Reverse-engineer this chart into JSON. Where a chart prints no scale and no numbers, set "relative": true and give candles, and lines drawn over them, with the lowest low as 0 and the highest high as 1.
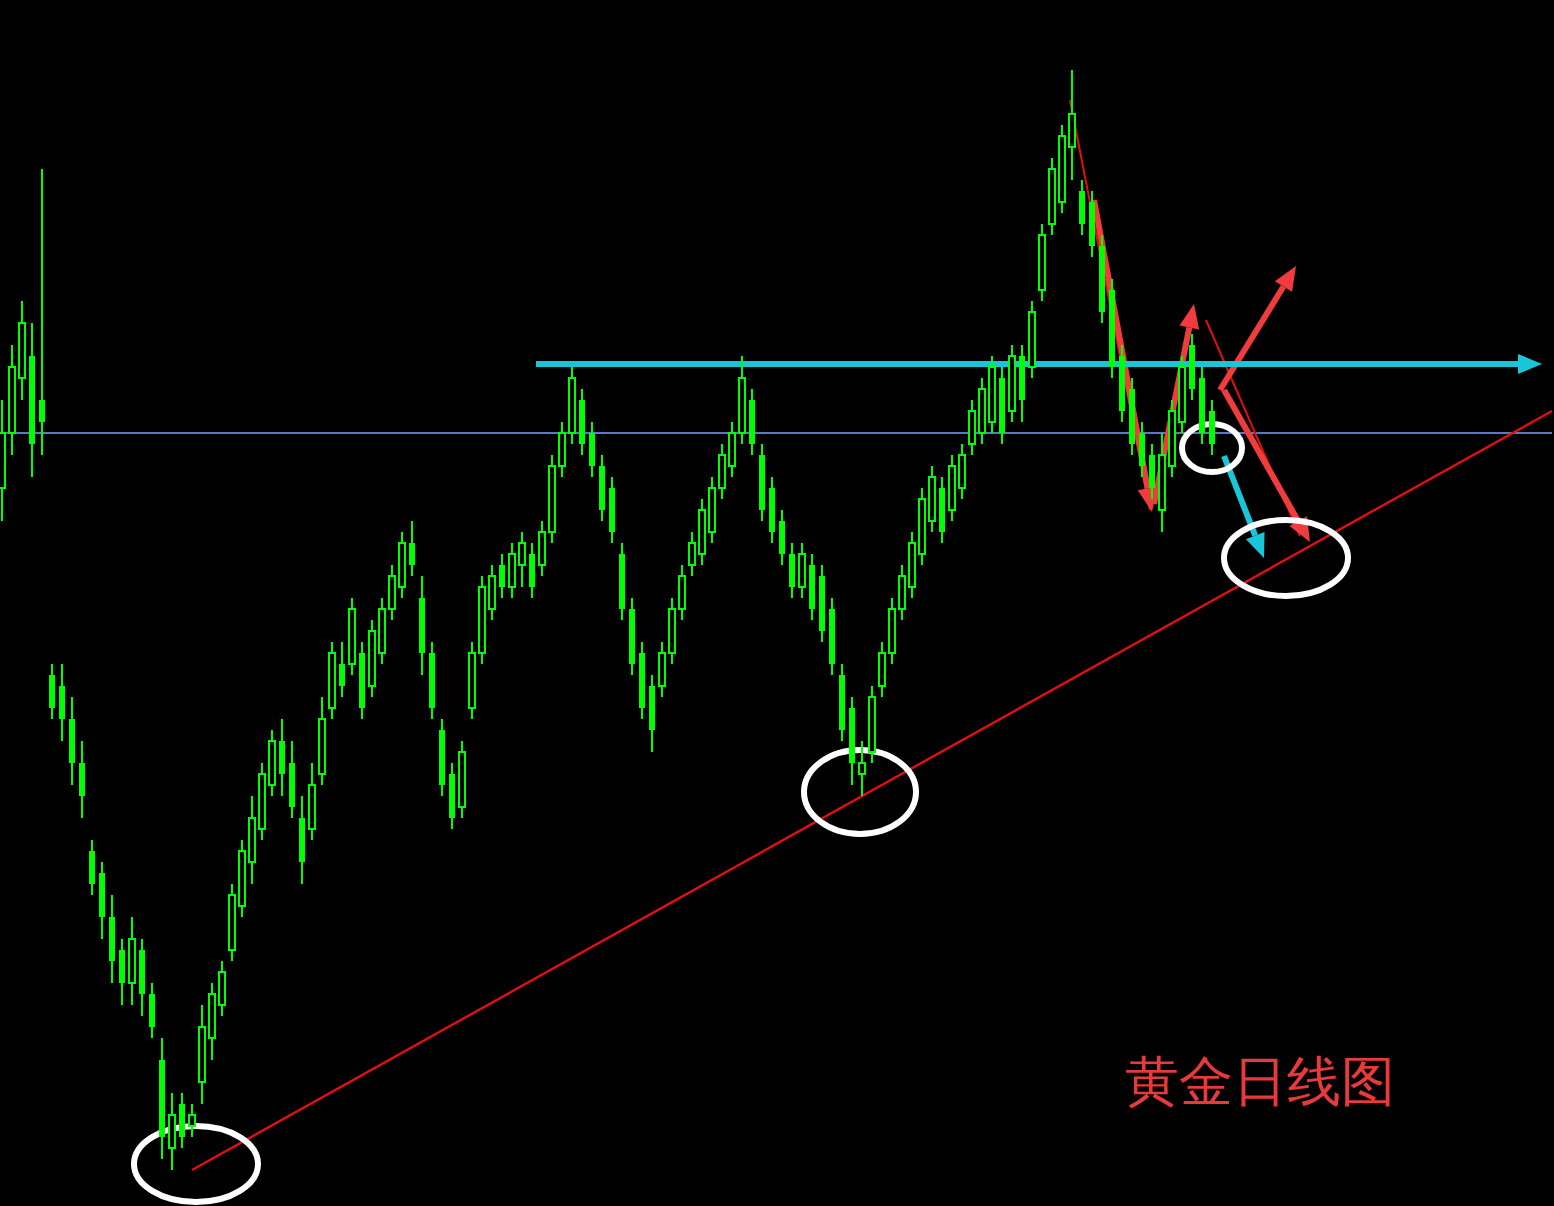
{
  "chart_data": {
    "type": "candlestick",
    "title": "黄金日线图",
    "relative": true,
    "color": "#00ff00",
    "categories": [
      null,
      null,
      null,
      null,
      null,
      null,
      null,
      null,
      null,
      null,
      null,
      null,
      null,
      null,
      null,
      null,
      null,
      null,
      null,
      null,
      null,
      null,
      null,
      null,
      null,
      null,
      null,
      null,
      null,
      null,
      null,
      null,
      null,
      null,
      null,
      null,
      null,
      null,
      null,
      null,
      null,
      null,
      null,
      null,
      null,
      null,
      null,
      null,
      null,
      null,
      null,
      null,
      null,
      null,
      null,
      null,
      null,
      null,
      null,
      null,
      null,
      null,
      null,
      null,
      null,
      null,
      null,
      null,
      null,
      null,
      null,
      null,
      null,
      null,
      null,
      null,
      null,
      null,
      null,
      null,
      null,
      null,
      null,
      null,
      null,
      null,
      null,
      null,
      null,
      null,
      null,
      null,
      null,
      null,
      null,
      null,
      null,
      null,
      null,
      null,
      null,
      null,
      null,
      null,
      null,
      null,
      null,
      null,
      null,
      null,
      null,
      null,
      null,
      null,
      null,
      null,
      null,
      null,
      null,
      null,
      null,
      null,
      null,
      null,
      null,
      null,
      null,
      null,
      null,
      null,
      null,
      null,
      null,
      null,
      null,
      null,
      null,
      null,
      null,
      null,
      null,
      null,
      null,
      null,
      null,
      null,
      null,
      null,
      null,
      null,
      null,
      null,
      null,
      null,
      null,
      null
    ],
    "ohlc": [
      [
        0.62,
        0.7,
        0.59,
        0.67
      ],
      [
        0.67,
        0.75,
        0.65,
        0.73
      ],
      [
        0.72,
        0.79,
        0.7,
        0.77
      ],
      [
        0.74,
        0.77,
        0.63,
        0.66
      ],
      [
        0.7,
        0.91,
        0.65,
        0.68
      ],
      [
        0.45,
        0.46,
        0.41,
        0.42
      ],
      [
        0.44,
        0.46,
        0.39,
        0.41
      ],
      [
        0.41,
        0.43,
        0.35,
        0.37
      ],
      [
        0.37,
        0.39,
        0.32,
        0.34
      ],
      [
        0.29,
        0.3,
        0.25,
        0.26
      ],
      [
        0.27,
        0.28,
        0.21,
        0.23
      ],
      [
        0.23,
        0.25,
        0.17,
        0.19
      ],
      [
        0.2,
        0.21,
        0.15,
        0.17
      ],
      [
        0.17,
        0.23,
        0.15,
        0.21
      ],
      [
        0.2,
        0.21,
        0.14,
        0.16
      ],
      [
        0.16,
        0.17,
        0.12,
        0.13
      ],
      [
        0.1,
        0.12,
        0.01,
        0.03
      ],
      [
        0.02,
        0.07,
        0.0,
        0.05
      ],
      [
        0.06,
        0.07,
        0.02,
        0.03
      ],
      [
        0.04,
        0.06,
        0.03,
        0.05
      ],
      [
        0.08,
        0.15,
        0.06,
        0.13
      ],
      [
        0.12,
        0.17,
        0.1,
        0.16
      ],
      [
        0.15,
        0.19,
        0.14,
        0.18
      ],
      [
        0.2,
        0.26,
        0.19,
        0.25
      ],
      [
        0.24,
        0.3,
        0.23,
        0.29
      ],
      [
        0.28,
        0.34,
        0.26,
        0.32
      ],
      [
        0.31,
        0.37,
        0.3,
        0.36
      ],
      [
        0.35,
        0.4,
        0.34,
        0.39
      ],
      [
        0.39,
        0.41,
        0.34,
        0.36
      ],
      [
        0.37,
        0.39,
        0.32,
        0.33
      ],
      [
        0.32,
        0.34,
        0.26,
        0.28
      ],
      [
        0.31,
        0.37,
        0.3,
        0.35
      ],
      [
        0.36,
        0.43,
        0.35,
        0.41
      ],
      [
        0.42,
        0.48,
        0.41,
        0.47
      ],
      [
        0.46,
        0.48,
        0.43,
        0.44
      ],
      [
        0.46,
        0.52,
        0.45,
        0.51
      ],
      [
        0.47,
        0.48,
        0.41,
        0.42
      ],
      [
        0.44,
        0.5,
        0.43,
        0.49
      ],
      [
        0.47,
        0.52,
        0.46,
        0.51
      ],
      [
        0.51,
        0.55,
        0.5,
        0.54
      ],
      [
        0.53,
        0.58,
        0.52,
        0.57
      ],
      [
        0.57,
        0.59,
        0.54,
        0.55
      ],
      [
        0.52,
        0.54,
        0.45,
        0.47
      ],
      [
        0.47,
        0.48,
        0.41,
        0.42
      ],
      [
        0.4,
        0.41,
        0.34,
        0.35
      ],
      [
        0.36,
        0.37,
        0.31,
        0.32
      ],
      [
        0.33,
        0.39,
        0.32,
        0.38
      ],
      [
        0.42,
        0.48,
        0.41,
        0.47
      ],
      [
        0.47,
        0.54,
        0.46,
        0.53
      ],
      [
        0.51,
        0.55,
        0.5,
        0.54
      ],
      [
        0.55,
        0.56,
        0.52,
        0.53
      ],
      [
        0.53,
        0.57,
        0.52,
        0.56
      ],
      [
        0.55,
        0.58,
        0.53,
        0.57
      ],
      [
        0.56,
        0.57,
        0.52,
        0.53
      ],
      [
        0.55,
        0.59,
        0.54,
        0.58
      ],
      [
        0.58,
        0.65,
        0.57,
        0.64
      ],
      [
        0.64,
        0.68,
        0.63,
        0.67
      ],
      [
        0.67,
        0.73,
        0.66,
        0.72
      ],
      [
        0.7,
        0.71,
        0.65,
        0.66
      ],
      [
        0.67,
        0.68,
        0.63,
        0.64
      ],
      [
        0.64,
        0.65,
        0.59,
        0.6
      ],
      [
        0.62,
        0.63,
        0.57,
        0.58
      ],
      [
        0.56,
        0.57,
        0.5,
        0.51
      ],
      [
        0.51,
        0.52,
        0.45,
        0.46
      ],
      [
        0.47,
        0.48,
        0.41,
        0.42
      ],
      [
        0.44,
        0.45,
        0.38,
        0.4
      ],
      [
        0.44,
        0.48,
        0.43,
        0.47
      ],
      [
        0.47,
        0.52,
        0.46,
        0.51
      ],
      [
        0.51,
        0.55,
        0.5,
        0.54
      ],
      [
        0.55,
        0.58,
        0.54,
        0.57
      ],
      [
        0.56,
        0.61,
        0.55,
        0.6
      ],
      [
        0.58,
        0.63,
        0.57,
        0.62
      ],
      [
        0.62,
        0.66,
        0.61,
        0.65
      ],
      [
        0.64,
        0.68,
        0.63,
        0.67
      ],
      [
        0.67,
        0.74,
        0.66,
        0.72
      ],
      [
        0.7,
        0.71,
        0.65,
        0.66
      ],
      [
        0.65,
        0.66,
        0.59,
        0.6
      ],
      [
        0.62,
        0.63,
        0.57,
        0.58
      ],
      [
        0.59,
        0.6,
        0.55,
        0.56
      ],
      [
        0.56,
        0.57,
        0.52,
        0.53
      ],
      [
        0.53,
        0.57,
        0.52,
        0.56
      ],
      [
        0.55,
        0.56,
        0.5,
        0.51
      ],
      [
        0.54,
        0.55,
        0.48,
        0.49
      ],
      [
        0.51,
        0.52,
        0.45,
        0.46
      ],
      [
        0.45,
        0.46,
        0.39,
        0.4
      ],
      [
        0.42,
        0.43,
        0.35,
        0.37
      ],
      [
        0.36,
        0.39,
        0.34,
        0.37
      ],
      [
        0.38,
        0.44,
        0.37,
        0.43
      ],
      [
        0.44,
        0.48,
        0.43,
        0.47
      ],
      [
        0.47,
        0.52,
        0.46,
        0.51
      ],
      [
        0.51,
        0.55,
        0.5,
        0.54
      ],
      [
        0.53,
        0.58,
        0.52,
        0.57
      ],
      [
        0.56,
        0.62,
        0.55,
        0.61
      ],
      [
        0.59,
        0.64,
        0.58,
        0.63
      ],
      [
        0.62,
        0.63,
        0.57,
        0.58
      ],
      [
        0.6,
        0.65,
        0.59,
        0.64
      ],
      [
        0.62,
        0.66,
        0.61,
        0.65
      ],
      [
        0.66,
        0.7,
        0.65,
        0.69
      ],
      [
        0.67,
        0.72,
        0.66,
        0.71
      ],
      [
        0.68,
        0.74,
        0.67,
        0.73
      ],
      [
        0.72,
        0.73,
        0.66,
        0.67
      ],
      [
        0.69,
        0.75,
        0.68,
        0.74
      ],
      [
        0.74,
        0.75,
        0.68,
        0.7
      ],
      [
        0.73,
        0.79,
        0.72,
        0.78
      ],
      [
        0.8,
        0.86,
        0.79,
        0.85
      ],
      [
        0.86,
        0.92,
        0.85,
        0.91
      ],
      [
        0.88,
        0.95,
        0.87,
        0.94
      ],
      [
        0.93,
        1.0,
        0.9,
        0.96
      ],
      [
        0.89,
        0.9,
        0.85,
        0.86
      ],
      [
        0.88,
        0.89,
        0.83,
        0.84
      ],
      [
        0.84,
        0.85,
        0.77,
        0.78
      ],
      [
        0.8,
        0.81,
        0.72,
        0.73
      ],
      [
        0.74,
        0.75,
        0.68,
        0.69
      ],
      [
        0.71,
        0.72,
        0.65,
        0.66
      ],
      [
        0.67,
        0.68,
        0.63,
        0.64
      ],
      [
        0.65,
        0.66,
        0.61,
        0.62
      ],
      [
        0.6,
        0.67,
        0.58,
        0.65
      ],
      [
        0.64,
        0.7,
        0.63,
        0.69
      ],
      [
        0.68,
        0.74,
        0.67,
        0.73
      ],
      [
        0.75,
        0.76,
        0.7,
        0.71
      ],
      [
        0.72,
        0.73,
        0.66,
        0.67
      ],
      [
        0.69,
        0.7,
        0.65,
        0.66
      ],
      null,
      null,
      null,
      null,
      null,
      null,
      null,
      null,
      null,
      null,
      null,
      null,
      null,
      null,
      null,
      null,
      null,
      null,
      null,
      null,
      null,
      null,
      null,
      null,
      null,
      null,
      null,
      null,
      null,
      null,
      null,
      null,
      null,
      null
    ],
    "series": [
      {
        "type": "line",
        "color": "#5a78c8",
        "values": [
          0.67,
          null,
          null,
          null,
          null,
          null,
          null,
          null,
          null,
          null,
          null,
          null,
          null,
          null,
          null,
          null,
          null,
          null,
          null,
          null,
          null,
          null,
          null,
          null,
          null,
          null,
          null,
          null,
          null,
          null,
          null,
          null,
          null,
          null,
          null,
          null,
          null,
          null,
          null,
          null,
          null,
          null,
          null,
          null,
          null,
          null,
          null,
          null,
          null,
          null,
          null,
          null,
          null,
          null,
          null,
          null,
          null,
          null,
          null,
          null,
          null,
          null,
          null,
          null,
          null,
          null,
          null,
          null,
          null,
          null,
          null,
          null,
          null,
          null,
          null,
          null,
          null,
          null,
          null,
          null,
          null,
          null,
          null,
          null,
          null,
          null,
          null,
          null,
          null,
          null,
          null,
          null,
          null,
          null,
          null,
          null,
          null,
          null,
          null,
          null,
          null,
          null,
          null,
          null,
          null,
          null,
          null,
          null,
          null,
          null,
          null,
          null,
          null,
          null,
          null,
          null,
          null,
          null,
          null,
          null,
          null,
          null,
          null,
          null,
          null,
          null,
          null,
          null,
          null,
          null,
          null,
          null,
          null,
          null,
          null,
          null,
          null,
          null,
          null,
          null,
          null,
          null,
          null,
          null,
          null,
          null,
          null,
          null,
          null,
          null,
          null,
          null,
          null,
          null,
          null,
          0.67
        ]
      },
      {
        "type": "line",
        "color": "#e01010",
        "values": [
          null,
          null,
          null,
          null,
          null,
          null,
          null,
          null,
          null,
          null,
          null,
          null,
          null,
          null,
          null,
          null,
          null,
          null,
          null,
          0,
          null,
          null,
          null,
          null,
          null,
          null,
          null,
          null,
          null,
          null,
          null,
          null,
          null,
          null,
          null,
          null,
          null,
          null,
          null,
          null,
          null,
          null,
          null,
          null,
          null,
          null,
          null,
          null,
          null,
          null,
          null,
          null,
          null,
          null,
          null,
          null,
          null,
          null,
          null,
          null,
          null,
          null,
          null,
          null,
          null,
          null,
          null,
          null,
          null,
          null,
          null,
          null,
          null,
          null,
          null,
          null,
          null,
          null,
          null,
          null,
          null,
          null,
          null,
          null,
          null,
          null,
          null,
          null,
          null,
          null,
          null,
          null,
          null,
          null,
          null,
          null,
          null,
          null,
          null,
          null,
          null,
          null,
          null,
          null,
          null,
          null,
          null,
          null,
          null,
          null,
          null,
          null,
          null,
          null,
          null,
          null,
          null,
          null,
          null,
          null,
          null,
          null,
          null,
          null,
          null,
          null,
          null,
          null,
          null,
          null,
          null,
          null,
          null,
          null,
          null,
          null,
          null,
          null,
          null,
          null,
          null,
          null,
          null,
          null,
          null,
          null,
          null,
          null,
          null,
          null,
          null,
          null,
          null,
          null,
          null,
          0.69
        ]
      }
    ]
  }
}
